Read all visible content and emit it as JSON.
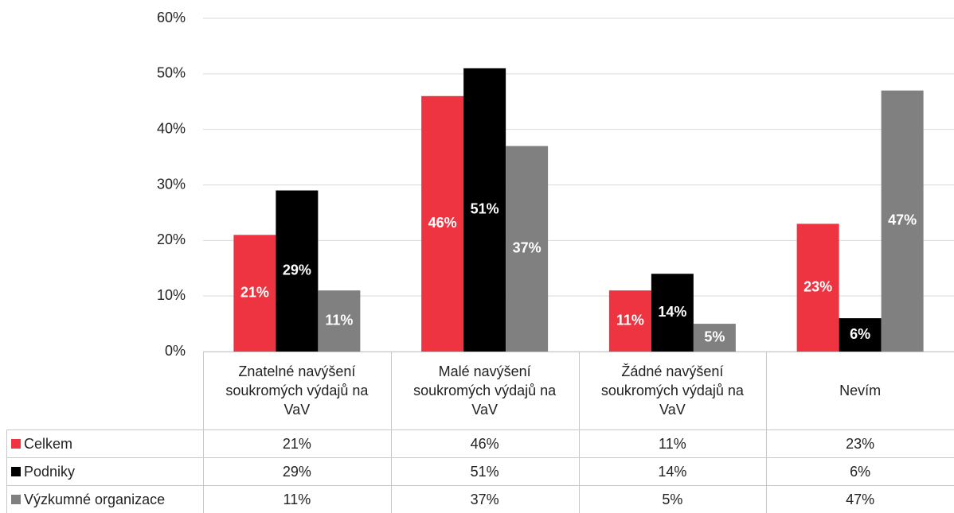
{
  "chart_data": {
    "type": "bar",
    "categories": [
      "Znatelné navýšení soukromých výdajů na VaV",
      "Malé navýšení soukromých výdajů na VaV",
      "Žádné navýšení soukromých výdajů na VaV",
      "Nevím"
    ],
    "series": [
      {
        "name": "Celkem",
        "color": "#ee3440",
        "values": [
          21,
          46,
          11,
          23
        ],
        "value_labels": [
          "21%",
          "46%",
          "11%",
          "23%"
        ]
      },
      {
        "name": "Podniky",
        "color": "#000000",
        "values": [
          29,
          51,
          14,
          6
        ],
        "value_labels": [
          "29%",
          "51%",
          "14%",
          "6%"
        ]
      },
      {
        "name": "Výzkumné organizace",
        "color": "#808080",
        "values": [
          11,
          37,
          5,
          47
        ],
        "value_labels": [
          "11%",
          "37%",
          "5%",
          "47%"
        ]
      }
    ],
    "ylim": [
      0,
      60
    ],
    "yticks": [
      {
        "value": 0,
        "label": "0%"
      },
      {
        "value": 10,
        "label": "10%"
      },
      {
        "value": 20,
        "label": "20%"
      },
      {
        "value": 30,
        "label": "30%"
      },
      {
        "value": 40,
        "label": "40%"
      },
      {
        "value": 50,
        "label": "50%"
      },
      {
        "value": 60,
        "label": "60%"
      }
    ],
    "grid": true
  }
}
